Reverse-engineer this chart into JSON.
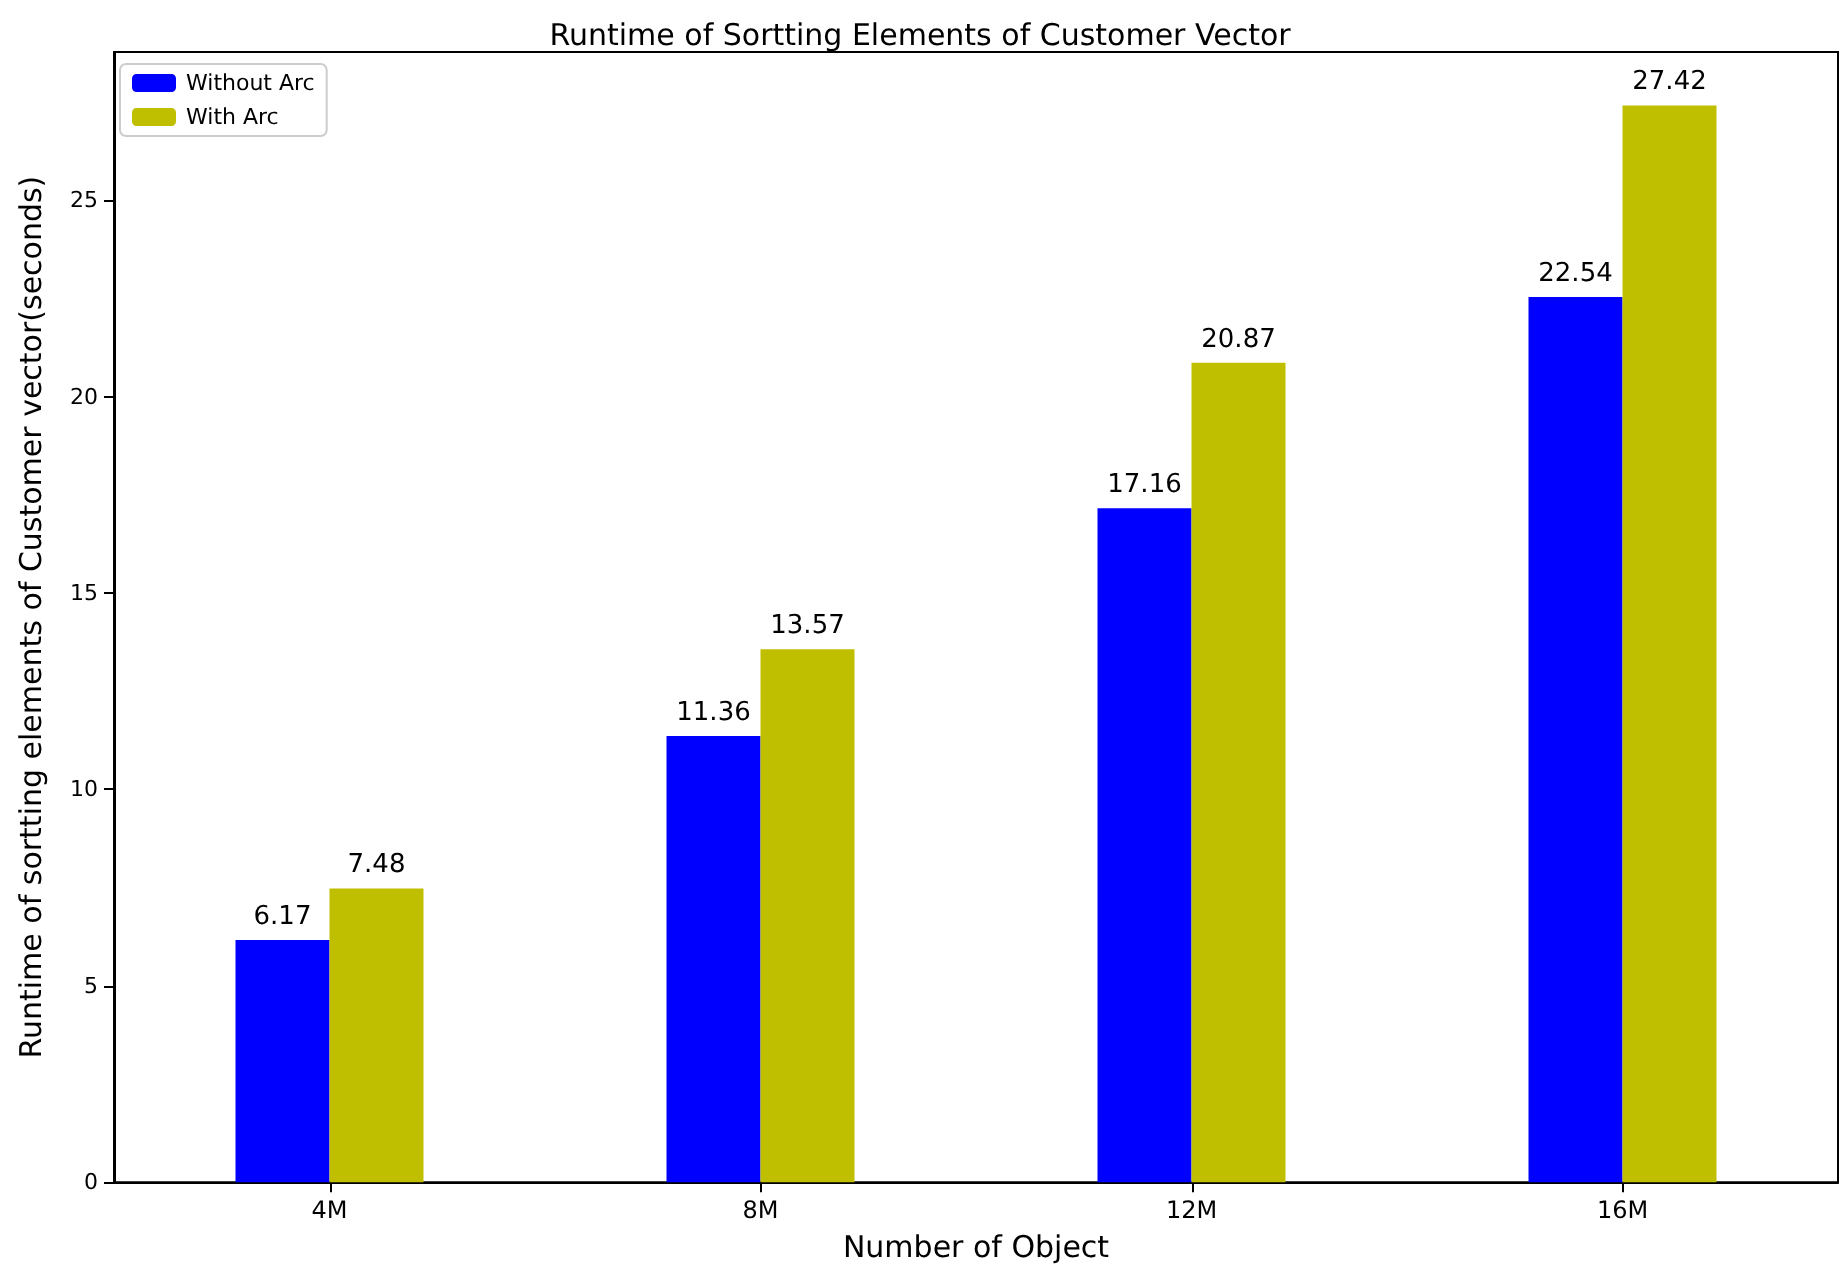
{
  "chart_data": {
    "type": "bar",
    "title": "Runtime of Sortting Elements of Customer Vector",
    "xlabel": "Number of Object",
    "ylabel": "Runtime of sortting elements of Customer vector(seconds)",
    "categories": [
      "4M",
      "8M",
      "12M",
      "16M"
    ],
    "series": [
      {
        "name": "Without Arc",
        "color": "#0000ff",
        "values": [
          6.17,
          11.36,
          17.16,
          22.54
        ]
      },
      {
        "name": "With Arc",
        "color": "#bfbf00",
        "values": [
          7.48,
          13.57,
          20.87,
          27.42
        ]
      }
    ],
    "ylim": [
      0,
      28.78
    ],
    "yticks": [
      0,
      5,
      10,
      15,
      20,
      25
    ],
    "data_labels": true,
    "legend": "top left",
    "grid": false
  }
}
